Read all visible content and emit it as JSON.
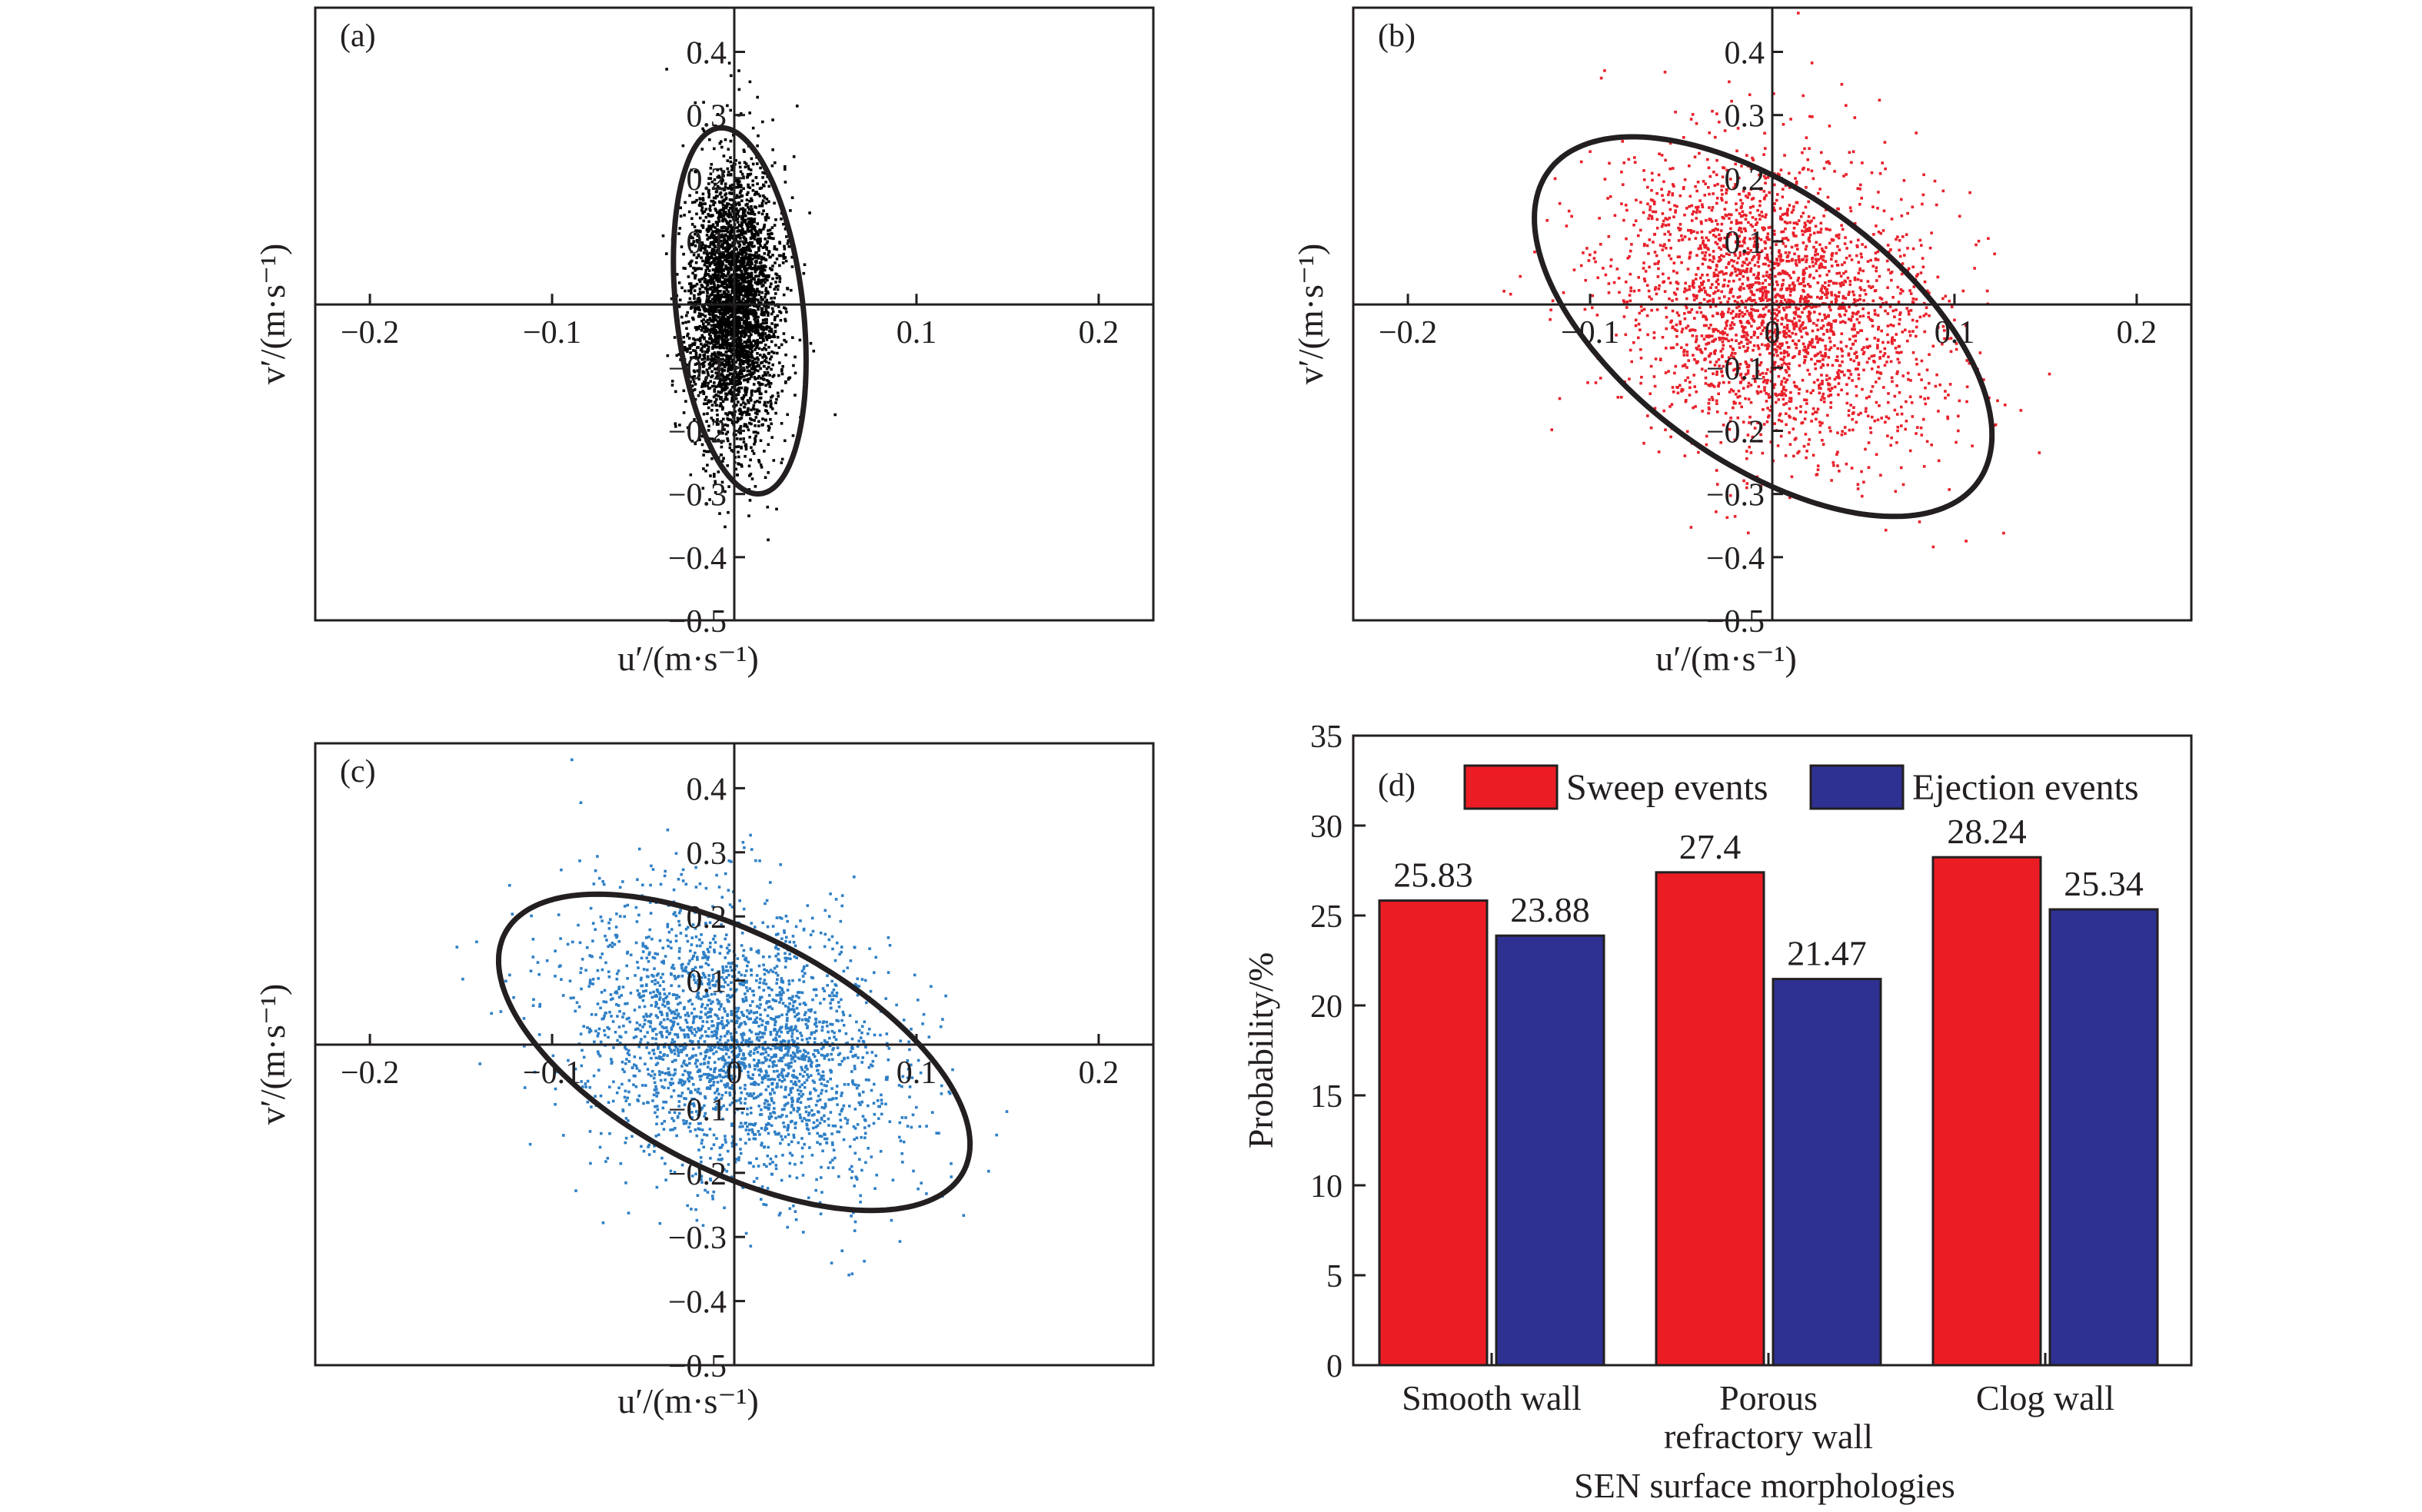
{
  "chart_data": [
    {
      "type": "scatter",
      "panel_label": "(a)",
      "xlabel": "u′/(m·s⁻¹)",
      "ylabel": "v′/(m·s⁻¹)",
      "xlim": [
        -0.23,
        0.23
      ],
      "ylim": [
        -0.5,
        0.47
      ],
      "x_ticks": [
        "−0.2",
        "−0.1",
        "0.1",
        "0.2"
      ],
      "y_ticks": [
        "0.4",
        "0.3",
        "0.2",
        "0.1",
        "−0.1",
        "−0.2",
        "−0.3",
        "−0.4",
        "−0.5"
      ],
      "point_color": "#000000",
      "scatter": {
        "mean_x": 0.0,
        "mean_y": 0.0,
        "std_x": 0.012,
        "std_y": 0.11,
        "correlation": 0.0,
        "count": 3500
      },
      "ellipse": {
        "center": [
          0.003,
          -0.01
        ],
        "semi_major": 0.29,
        "semi_minor": 0.035,
        "angle_deg": 92
      }
    },
    {
      "type": "scatter",
      "panel_label": "(b)",
      "xlabel": "u′/(m·s⁻¹)",
      "ylabel": "v′/(m·s⁻¹)",
      "xlim": [
        -0.23,
        0.23
      ],
      "ylim": [
        -0.5,
        0.47
      ],
      "x_ticks": [
        "−0.2",
        "−0.1",
        "0",
        "0.1",
        "0.2"
      ],
      "y_ticks": [
        "0.4",
        "0.3",
        "0.2",
        "0.1",
        "0",
        "−0.1",
        "−0.2",
        "−0.3",
        "−0.4",
        "−0.5"
      ],
      "point_color": "#e8202a",
      "scatter": {
        "mean_x": 0.0,
        "mean_y": 0.0,
        "std_x": 0.045,
        "std_y": 0.12,
        "correlation": -0.25,
        "count": 2600
      },
      "ellipse": {
        "center": [
          -0.005,
          -0.035
        ],
        "semi_major": 0.31,
        "semi_minor": 0.1,
        "angle_deg": 105
      }
    },
    {
      "type": "scatter",
      "panel_label": "(c)",
      "xlabel": "u′/(m·s⁻¹)",
      "ylabel": "v′/(m·s⁻¹)",
      "xlim": [
        -0.23,
        0.23
      ],
      "ylim": [
        -0.5,
        0.47
      ],
      "x_ticks": [
        "−0.2",
        "−0.1",
        "0",
        "0.1",
        "0.2"
      ],
      "y_ticks": [
        "0.4",
        "0.3",
        "0.2",
        "0.1",
        "0",
        "−0.1",
        "−0.2",
        "−0.3",
        "−0.4",
        "−0.5"
      ],
      "point_color": "#2e7fc6",
      "scatter": {
        "mean_x": 0.0,
        "mean_y": 0.0,
        "std_x": 0.045,
        "std_y": 0.11,
        "correlation": -0.3,
        "count": 2600
      },
      "ellipse": {
        "center": [
          -0.0,
          -0.012
        ],
        "semi_major": 0.26,
        "semi_minor": 0.1,
        "angle_deg": 110
      }
    },
    {
      "type": "bar",
      "panel_label": "(d)",
      "categories": [
        [
          "Smooth wall"
        ],
        [
          "Porous",
          "refractory wall"
        ],
        [
          "Clog wall"
        ]
      ],
      "series": [
        {
          "name": "Sweep events",
          "values": [
            25.83,
            27.4,
            28.24
          ],
          "color": "#ec1c24"
        },
        {
          "name": "Ejection events",
          "values": [
            23.88,
            21.47,
            25.34
          ],
          "color": "#2e3192"
        }
      ],
      "value_labels": [
        [
          "25.83",
          "27.4",
          "28.24"
        ],
        [
          "23.88",
          "21.47",
          "25.34"
        ]
      ],
      "xlabel": "SEN surface morphologies",
      "ylabel": "Probability/%",
      "ylim": [
        0,
        35
      ],
      "y_ticks": [
        0,
        5,
        10,
        15,
        20,
        25,
        30,
        35
      ],
      "legend_position": "top",
      "grid": false
    }
  ]
}
